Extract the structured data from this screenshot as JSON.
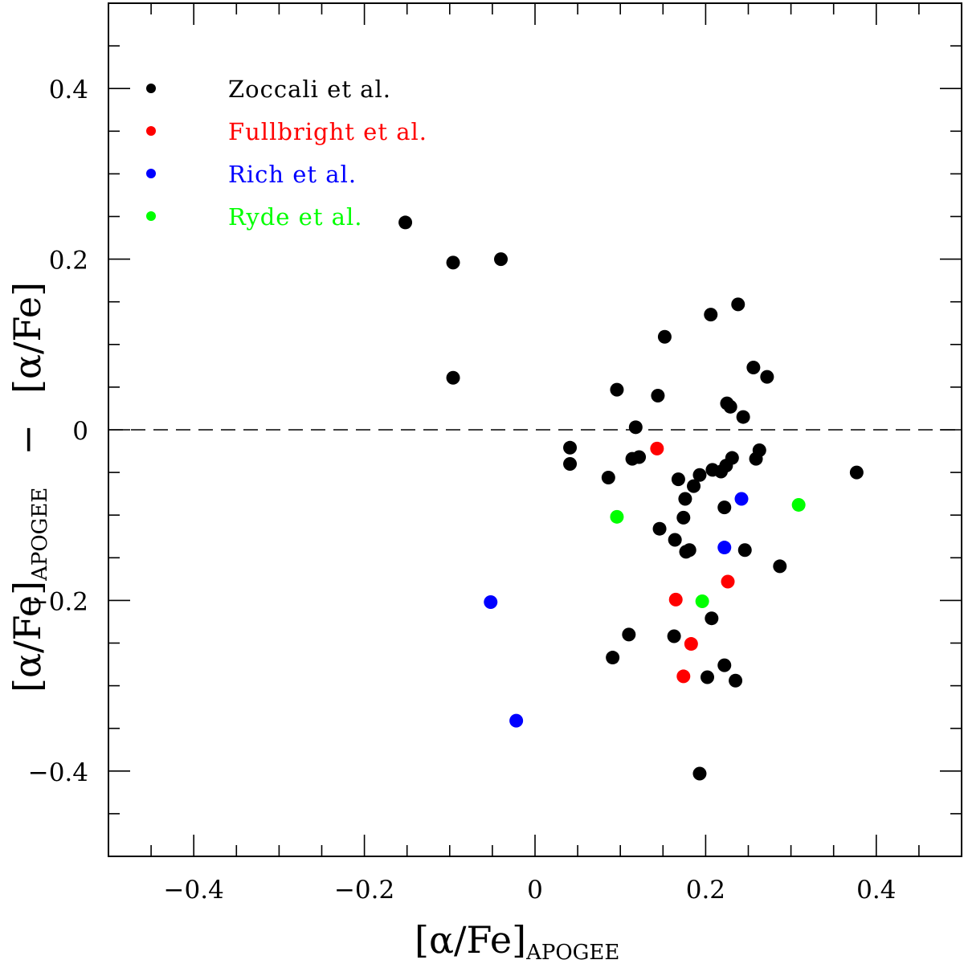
{
  "chart_data": {
    "type": "scatter",
    "xlabel": {
      "main": "[α/Fe]",
      "sub": "APOGEE"
    },
    "ylabel": {
      "first": "[α/Fe]",
      "first_sub": "APOGEE",
      "dash": "−",
      "second": "[α/Fe]"
    },
    "xlim": [
      -0.5,
      0.5
    ],
    "ylim": [
      -0.5,
      0.5
    ],
    "x_ticks": [
      {
        "value": -0.4,
        "label": "−0.4"
      },
      {
        "value": -0.2,
        "label": "−0.2"
      },
      {
        "value": 0,
        "label": "0"
      },
      {
        "value": 0.2,
        "label": "0.2"
      },
      {
        "value": 0.4,
        "label": "0.4"
      }
    ],
    "y_ticks": [
      {
        "value": 0.4,
        "label": "0.4"
      },
      {
        "value": 0.2,
        "label": "0.2"
      },
      {
        "value": 0,
        "label": "0"
      },
      {
        "value": -0.2,
        "label": "−0.2"
      },
      {
        "value": -0.4,
        "label": "−0.4"
      }
    ],
    "minor_step": 0.05,
    "reference_line": {
      "y": 0,
      "style": "dashed"
    },
    "legend_position": "top-left",
    "series": [
      {
        "name": "Zoccali et al.",
        "color": "#000000",
        "points": [
          [
            -0.152,
            0.243
          ],
          [
            -0.096,
            0.196
          ],
          [
            -0.04,
            0.2
          ],
          [
            -0.096,
            0.061
          ],
          [
            0.041,
            -0.021
          ],
          [
            0.041,
            -0.04
          ],
          [
            0.086,
            -0.056
          ],
          [
            0.096,
            0.047
          ],
          [
            0.114,
            -0.034
          ],
          [
            0.118,
            0.003
          ],
          [
            0.122,
            -0.032
          ],
          [
            0.144,
            0.04
          ],
          [
            0.146,
            -0.116
          ],
          [
            0.152,
            0.109
          ],
          [
            0.164,
            -0.129
          ],
          [
            0.168,
            -0.058
          ],
          [
            0.174,
            -0.103
          ],
          [
            0.176,
            -0.081
          ],
          [
            0.177,
            -0.143
          ],
          [
            0.181,
            -0.141
          ],
          [
            0.186,
            -0.066
          ],
          [
            0.193,
            -0.053
          ],
          [
            0.206,
            0.135
          ],
          [
            0.208,
            -0.047
          ],
          [
            0.218,
            -0.049
          ],
          [
            0.222,
            -0.091
          ],
          [
            0.224,
            -0.042
          ],
          [
            0.225,
            0.031
          ],
          [
            0.229,
            0.027
          ],
          [
            0.231,
            -0.033
          ],
          [
            0.238,
            0.147
          ],
          [
            0.244,
            0.015
          ],
          [
            0.246,
            -0.141
          ],
          [
            0.256,
            0.073
          ],
          [
            0.259,
            -0.034
          ],
          [
            0.263,
            -0.024
          ],
          [
            0.272,
            0.062
          ],
          [
            0.287,
            -0.16
          ],
          [
            0.377,
            -0.05
          ],
          [
            0.091,
            -0.267
          ],
          [
            0.11,
            -0.24
          ],
          [
            0.163,
            -0.242
          ],
          [
            0.207,
            -0.221
          ],
          [
            0.202,
            -0.29
          ],
          [
            0.222,
            -0.276
          ],
          [
            0.235,
            -0.294
          ],
          [
            0.193,
            -0.403
          ]
        ]
      },
      {
        "name": "Fullbright et al.",
        "color": "#ff0000",
        "points": [
          [
            0.143,
            -0.022
          ],
          [
            0.165,
            -0.199
          ],
          [
            0.183,
            -0.251
          ],
          [
            0.174,
            -0.289
          ],
          [
            0.226,
            -0.178
          ]
        ]
      },
      {
        "name": "Rich et al.",
        "color": "#0000ff",
        "points": [
          [
            -0.052,
            -0.202
          ],
          [
            -0.022,
            -0.341
          ],
          [
            0.222,
            -0.138
          ],
          [
            0.242,
            -0.081
          ]
        ]
      },
      {
        "name": "Ryde et al.",
        "color": "#00ff00",
        "points": [
          [
            0.096,
            -0.102
          ],
          [
            0.196,
            -0.201
          ],
          [
            0.309,
            -0.088
          ]
        ]
      }
    ]
  }
}
